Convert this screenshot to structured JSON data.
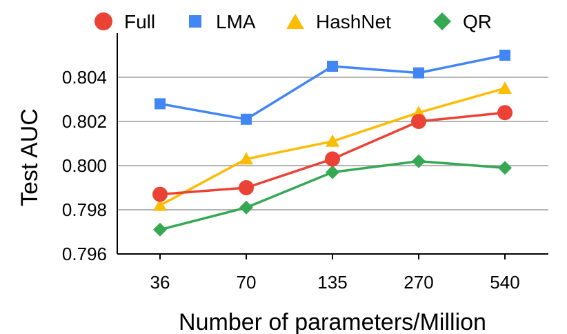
{
  "chart_data": {
    "type": "line",
    "title": "",
    "xlabel": "Number of parameters/Million",
    "ylabel": "Test AUC",
    "categories": [
      "36",
      "70",
      "135",
      "270",
      "540"
    ],
    "ylim": [
      0.796,
      0.806
    ],
    "yticks": [
      "0.796",
      "0.798",
      "0.800",
      "0.802",
      "0.804"
    ],
    "grid": true,
    "legend_position": "top",
    "series": [
      {
        "name": "Full",
        "marker": "circle",
        "color": "#EA4335",
        "values": [
          0.7987,
          0.799,
          0.8003,
          0.802,
          0.8024
        ]
      },
      {
        "name": "LMA",
        "marker": "square",
        "color": "#4285F4",
        "values": [
          0.8028,
          0.8021,
          0.8045,
          0.8042,
          0.805
        ]
      },
      {
        "name": "HashNet",
        "marker": "triangle",
        "color": "#FBBC04",
        "values": [
          0.7982,
          0.8003,
          0.8011,
          0.8024,
          0.8035
        ]
      },
      {
        "name": "QR",
        "marker": "diamond",
        "color": "#34A853",
        "values": [
          0.7971,
          0.7981,
          0.7997,
          0.8002,
          0.7999
        ]
      }
    ]
  }
}
